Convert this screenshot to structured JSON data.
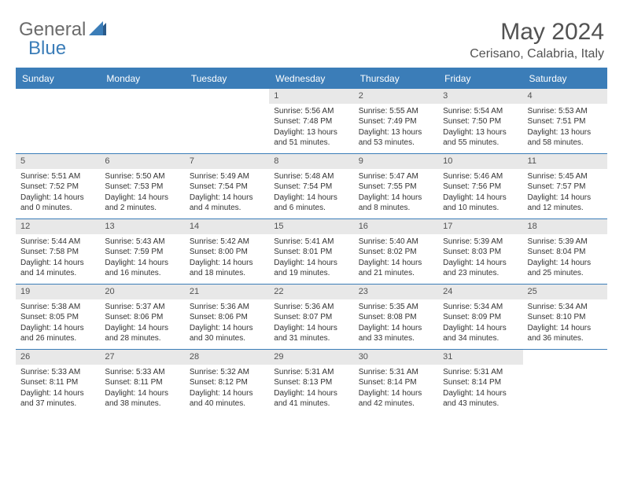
{
  "logo": {
    "general": "General",
    "blue": "Blue"
  },
  "title": "May 2024",
  "location": "Cerisano, Calabria, Italy",
  "weekdays": [
    "Sunday",
    "Monday",
    "Tuesday",
    "Wednesday",
    "Thursday",
    "Friday",
    "Saturday"
  ],
  "colors": {
    "accent": "#3b7db8",
    "weekday_bg": "#3b7db8",
    "weekday_text": "#ffffff",
    "daynum_bg": "#e8e8e8",
    "text": "#333333",
    "muted": "#525252",
    "background": "#ffffff"
  },
  "fonts": {
    "title_size": 30,
    "location_size": 16,
    "weekday_size": 12,
    "daynum_size": 11,
    "body_size": 10
  },
  "weeks": [
    [
      null,
      null,
      null,
      {
        "n": "1",
        "sunrise": "5:56 AM",
        "sunset": "7:48 PM",
        "dh": "13",
        "dm": "51"
      },
      {
        "n": "2",
        "sunrise": "5:55 AM",
        "sunset": "7:49 PM",
        "dh": "13",
        "dm": "53"
      },
      {
        "n": "3",
        "sunrise": "5:54 AM",
        "sunset": "7:50 PM",
        "dh": "13",
        "dm": "55"
      },
      {
        "n": "4",
        "sunrise": "5:53 AM",
        "sunset": "7:51 PM",
        "dh": "13",
        "dm": "58"
      }
    ],
    [
      {
        "n": "5",
        "sunrise": "5:51 AM",
        "sunset": "7:52 PM",
        "dh": "14",
        "dm": "0"
      },
      {
        "n": "6",
        "sunrise": "5:50 AM",
        "sunset": "7:53 PM",
        "dh": "14",
        "dm": "2"
      },
      {
        "n": "7",
        "sunrise": "5:49 AM",
        "sunset": "7:54 PM",
        "dh": "14",
        "dm": "4"
      },
      {
        "n": "8",
        "sunrise": "5:48 AM",
        "sunset": "7:54 PM",
        "dh": "14",
        "dm": "6"
      },
      {
        "n": "9",
        "sunrise": "5:47 AM",
        "sunset": "7:55 PM",
        "dh": "14",
        "dm": "8"
      },
      {
        "n": "10",
        "sunrise": "5:46 AM",
        "sunset": "7:56 PM",
        "dh": "14",
        "dm": "10"
      },
      {
        "n": "11",
        "sunrise": "5:45 AM",
        "sunset": "7:57 PM",
        "dh": "14",
        "dm": "12"
      }
    ],
    [
      {
        "n": "12",
        "sunrise": "5:44 AM",
        "sunset": "7:58 PM",
        "dh": "14",
        "dm": "14"
      },
      {
        "n": "13",
        "sunrise": "5:43 AM",
        "sunset": "7:59 PM",
        "dh": "14",
        "dm": "16"
      },
      {
        "n": "14",
        "sunrise": "5:42 AM",
        "sunset": "8:00 PM",
        "dh": "14",
        "dm": "18"
      },
      {
        "n": "15",
        "sunrise": "5:41 AM",
        "sunset": "8:01 PM",
        "dh": "14",
        "dm": "19"
      },
      {
        "n": "16",
        "sunrise": "5:40 AM",
        "sunset": "8:02 PM",
        "dh": "14",
        "dm": "21"
      },
      {
        "n": "17",
        "sunrise": "5:39 AM",
        "sunset": "8:03 PM",
        "dh": "14",
        "dm": "23"
      },
      {
        "n": "18",
        "sunrise": "5:39 AM",
        "sunset": "8:04 PM",
        "dh": "14",
        "dm": "25"
      }
    ],
    [
      {
        "n": "19",
        "sunrise": "5:38 AM",
        "sunset": "8:05 PM",
        "dh": "14",
        "dm": "26"
      },
      {
        "n": "20",
        "sunrise": "5:37 AM",
        "sunset": "8:06 PM",
        "dh": "14",
        "dm": "28"
      },
      {
        "n": "21",
        "sunrise": "5:36 AM",
        "sunset": "8:06 PM",
        "dh": "14",
        "dm": "30"
      },
      {
        "n": "22",
        "sunrise": "5:36 AM",
        "sunset": "8:07 PM",
        "dh": "14",
        "dm": "31"
      },
      {
        "n": "23",
        "sunrise": "5:35 AM",
        "sunset": "8:08 PM",
        "dh": "14",
        "dm": "33"
      },
      {
        "n": "24",
        "sunrise": "5:34 AM",
        "sunset": "8:09 PM",
        "dh": "14",
        "dm": "34"
      },
      {
        "n": "25",
        "sunrise": "5:34 AM",
        "sunset": "8:10 PM",
        "dh": "14",
        "dm": "36"
      }
    ],
    [
      {
        "n": "26",
        "sunrise": "5:33 AM",
        "sunset": "8:11 PM",
        "dh": "14",
        "dm": "37"
      },
      {
        "n": "27",
        "sunrise": "5:33 AM",
        "sunset": "8:11 PM",
        "dh": "14",
        "dm": "38"
      },
      {
        "n": "28",
        "sunrise": "5:32 AM",
        "sunset": "8:12 PM",
        "dh": "14",
        "dm": "40"
      },
      {
        "n": "29",
        "sunrise": "5:31 AM",
        "sunset": "8:13 PM",
        "dh": "14",
        "dm": "41"
      },
      {
        "n": "30",
        "sunrise": "5:31 AM",
        "sunset": "8:14 PM",
        "dh": "14",
        "dm": "42"
      },
      {
        "n": "31",
        "sunrise": "5:31 AM",
        "sunset": "8:14 PM",
        "dh": "14",
        "dm": "43"
      },
      null
    ]
  ],
  "labels": {
    "sunrise": "Sunrise:",
    "sunset": "Sunset:",
    "daylight": "Daylight:",
    "hours_and": "hours and",
    "minutes": "minutes."
  }
}
